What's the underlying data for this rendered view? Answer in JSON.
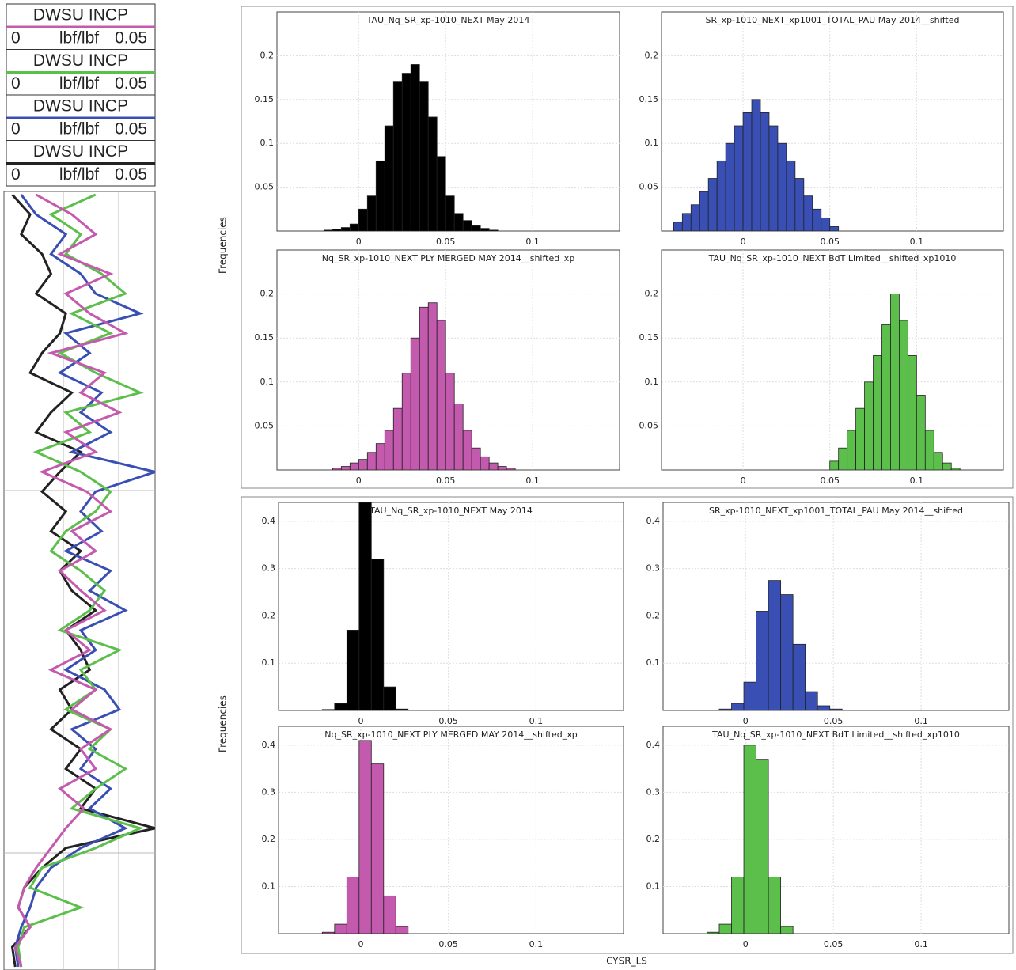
{
  "figure": {
    "y_label_upper": "Frequencies",
    "y_label_lower": "Frequencies",
    "x_label": "CYSR_LS"
  },
  "chart_data": [
    {
      "type": "log",
      "series": [
        {
          "name": "DWSU INCP",
          "color": "#c45aae",
          "unit": "lbf/lbf",
          "scale": [
            0,
            0.05
          ],
          "values": [
            0.01,
            0.022,
            0.03,
            0.018,
            0.035,
            0.02,
            0.028,
            0.04,
            0.015,
            0.033,
            0.025,
            0.038,
            0.02,
            0.03,
            0.012,
            0.027,
            0.035,
            0.022,
            0.03,
            0.018,
            0.025,
            0.033,
            0.02,
            0.028,
            0.015,
            0.03,
            0.022,
            0.035,
            0.025,
            0.03,
            0.018,
            0.026,
            0.02,
            0.015,
            0.01,
            0.006,
            0.004,
            0.008,
            0.003,
            0.005
          ]
        },
        {
          "name": "DWSU INCP",
          "color": "#5cbf4c",
          "unit": "lbf/lbf",
          "scale": [
            0,
            0.05
          ],
          "values": [
            0.03,
            0.015,
            0.025,
            0.02,
            0.032,
            0.04,
            0.022,
            0.035,
            0.018,
            0.03,
            0.045,
            0.02,
            0.028,
            0.01,
            0.025,
            0.035,
            0.03,
            0.02,
            0.015,
            0.025,
            0.033,
            0.028,
            0.018,
            0.038,
            0.025,
            0.03,
            0.02,
            0.035,
            0.028,
            0.04,
            0.03,
            0.022,
            0.045,
            0.03,
            0.012,
            0.008,
            0.025,
            0.006,
            0.004,
            0.005
          ]
        },
        {
          "name": "DWSU INCP",
          "color": "#3a4fb4",
          "unit": "lbf/lbf",
          "scale": [
            0,
            0.05
          ],
          "values": [
            0.005,
            0.01,
            0.02,
            0.015,
            0.025,
            0.03,
            0.045,
            0.02,
            0.028,
            0.018,
            0.032,
            0.025,
            0.035,
            0.022,
            0.05,
            0.03,
            0.025,
            0.032,
            0.02,
            0.035,
            0.028,
            0.04,
            0.025,
            0.03,
            0.02,
            0.033,
            0.038,
            0.022,
            0.03,
            0.025,
            0.035,
            0.028,
            0.04,
            0.025,
            0.015,
            0.01,
            0.008,
            0.005,
            0.003,
            0.004
          ]
        },
        {
          "name": "DWSU INCP",
          "color": "#222222",
          "unit": "lbf/lbf",
          "scale": [
            0,
            0.05
          ],
          "values": [
            0.002,
            0.008,
            0.005,
            0.012,
            0.015,
            0.01,
            0.02,
            0.018,
            0.012,
            0.008,
            0.022,
            0.015,
            0.01,
            0.025,
            0.018,
            0.012,
            0.02,
            0.015,
            0.025,
            0.018,
            0.022,
            0.03,
            0.02,
            0.025,
            0.028,
            0.018,
            0.022,
            0.015,
            0.025,
            0.02,
            0.03,
            0.025,
            0.05,
            0.02,
            0.012,
            0.006,
            0.004,
            0.008,
            0.002,
            0.003
          ]
        }
      ]
    },
    {
      "type": "histogram",
      "title": "TAU_Nq_SR_xp-1010_NEXT May 2014",
      "color": "#000000",
      "bins": [
        -0.02,
        -0.015,
        -0.01,
        -0.005,
        0,
        0.005,
        0.01,
        0.015,
        0.02,
        0.025,
        0.03,
        0.035,
        0.04,
        0.045,
        0.05,
        0.055,
        0.06,
        0.065,
        0.07,
        0.075,
        0.08
      ],
      "values": [
        0.001,
        0.002,
        0.004,
        0.008,
        0.025,
        0.04,
        0.08,
        0.12,
        0.17,
        0.18,
        0.19,
        0.17,
        0.13,
        0.085,
        0.04,
        0.02,
        0.012,
        0.006,
        0.003,
        0.001
      ],
      "xlim": [
        -0.047,
        0.15
      ],
      "ylim": [
        0,
        0.25
      ],
      "xticks": [
        0,
        0.05,
        0.1
      ],
      "yticks": [
        0.05,
        0.1,
        0.15,
        0.2
      ],
      "grid": true
    },
    {
      "type": "histogram",
      "title": "SR_xp-1010_NEXT_xp1001_TOTAL_PAU May 2014__shifted",
      "color": "#3a4fb4",
      "bins": [
        -0.04,
        -0.035,
        -0.03,
        -0.025,
        -0.02,
        -0.015,
        -0.01,
        -0.005,
        0,
        0.005,
        0.01,
        0.015,
        0.02,
        0.025,
        0.03,
        0.035,
        0.04,
        0.045,
        0.05,
        0.055
      ],
      "values": [
        0.01,
        0.02,
        0.03,
        0.045,
        0.06,
        0.08,
        0.1,
        0.12,
        0.135,
        0.15,
        0.135,
        0.12,
        0.1,
        0.08,
        0.06,
        0.04,
        0.025,
        0.015,
        0.005
      ],
      "xlim": [
        -0.047,
        0.15
      ],
      "ylim": [
        0,
        0.25
      ],
      "xticks": [
        0,
        0.05,
        0.1
      ],
      "yticks": [
        0.05,
        0.1,
        0.15,
        0.2
      ],
      "grid": true
    },
    {
      "type": "histogram",
      "title": "Nq_SR_xp-1010_NEXT PLY  MERGED MAY 2014__shifted_xp",
      "color": "#c45aae",
      "bins": [
        -0.015,
        -0.01,
        -0.005,
        0,
        0.005,
        0.01,
        0.015,
        0.02,
        0.025,
        0.03,
        0.035,
        0.04,
        0.045,
        0.05,
        0.055,
        0.06,
        0.065,
        0.07,
        0.075,
        0.08,
        0.085,
        0.09
      ],
      "values": [
        0.002,
        0.004,
        0.008,
        0.012,
        0.02,
        0.03,
        0.045,
        0.07,
        0.11,
        0.15,
        0.185,
        0.19,
        0.17,
        0.11,
        0.075,
        0.045,
        0.025,
        0.015,
        0.008,
        0.004,
        0.002
      ],
      "xlim": [
        -0.047,
        0.15
      ],
      "ylim": [
        0,
        0.25
      ],
      "xticks": [
        0,
        0.05,
        0.1
      ],
      "yticks": [
        0.05,
        0.1,
        0.15,
        0.2
      ],
      "grid": true
    },
    {
      "type": "histogram",
      "title": "TAU_Nq_SR_xp-1010_NEXT BdT Limited__shifted_xp1010",
      "color": "#5cbf4c",
      "bins": [
        0.05,
        0.055,
        0.06,
        0.065,
        0.07,
        0.075,
        0.08,
        0.085,
        0.09,
        0.095,
        0.1,
        0.105,
        0.11,
        0.115,
        0.12,
        0.125
      ],
      "values": [
        0.01,
        0.025,
        0.045,
        0.07,
        0.1,
        0.13,
        0.165,
        0.2,
        0.17,
        0.13,
        0.085,
        0.045,
        0.02,
        0.008,
        0.002
      ],
      "xlim": [
        -0.047,
        0.15
      ],
      "ylim": [
        0,
        0.25
      ],
      "xticks": [
        0,
        0.05,
        0.1
      ],
      "yticks": [
        0.05,
        0.1,
        0.15,
        0.2
      ],
      "grid": true
    },
    {
      "type": "histogram",
      "title": "TAU_Nq_SR_xp-1010_NEXT May 2014",
      "color": "#000000",
      "bins": [
        -0.022,
        -0.015,
        -0.008,
        -0.001,
        0.006,
        0.013,
        0.02,
        0.027
      ],
      "values": [
        0.002,
        0.015,
        0.17,
        0.44,
        0.32,
        0.05,
        0.003
      ],
      "xlim": [
        -0.047,
        0.15
      ],
      "ylim": [
        0,
        0.44
      ],
      "xticks": [
        0,
        0.05,
        0.1
      ],
      "yticks": [
        0.1,
        0.2,
        0.3,
        0.4
      ],
      "grid": true
    },
    {
      "type": "histogram",
      "title": "SR_xp-1010_NEXT_xp1001_TOTAL_PAU May 2014__shifted",
      "color": "#3a4fb4",
      "bins": [
        -0.015,
        -0.008,
        -0.001,
        0.006,
        0.013,
        0.02,
        0.027,
        0.034,
        0.041,
        0.048,
        0.055
      ],
      "values": [
        0.003,
        0.015,
        0.06,
        0.21,
        0.275,
        0.245,
        0.14,
        0.04,
        0.01,
        0.003
      ],
      "xlim": [
        -0.047,
        0.15
      ],
      "ylim": [
        0,
        0.44
      ],
      "xticks": [
        0,
        0.05,
        0.1
      ],
      "yticks": [
        0.1,
        0.2,
        0.3,
        0.4
      ],
      "grid": true
    },
    {
      "type": "histogram",
      "title": "Nq_SR_xp-1010_NEXT PLY  MERGED MAY 2014__shifted_xp",
      "color": "#c45aae",
      "bins": [
        -0.022,
        -0.015,
        -0.008,
        -0.001,
        0.006,
        0.013,
        0.02,
        0.027
      ],
      "values": [
        0.003,
        0.02,
        0.12,
        0.41,
        0.36,
        0.08,
        0.015
      ],
      "xlim": [
        -0.047,
        0.15
      ],
      "ylim": [
        0,
        0.44
      ],
      "xticks": [
        0,
        0.05,
        0.1
      ],
      "yticks": [
        0.1,
        0.2,
        0.3,
        0.4
      ],
      "grid": true
    },
    {
      "type": "histogram",
      "title": "TAU_Nq_SR_xp-1010_NEXT BdT Limited__shifted_xp1010",
      "color": "#5cbf4c",
      "bins": [
        -0.022,
        -0.015,
        -0.008,
        -0.001,
        0.006,
        0.013,
        0.02,
        0.027
      ],
      "values": [
        0.003,
        0.02,
        0.12,
        0.4,
        0.37,
        0.12,
        0.015
      ],
      "xlim": [
        -0.047,
        0.15
      ],
      "ylim": [
        0,
        0.44
      ],
      "xticks": [
        0,
        0.05,
        0.1
      ],
      "yticks": [
        0.1,
        0.2,
        0.3,
        0.4
      ],
      "grid": true
    }
  ]
}
